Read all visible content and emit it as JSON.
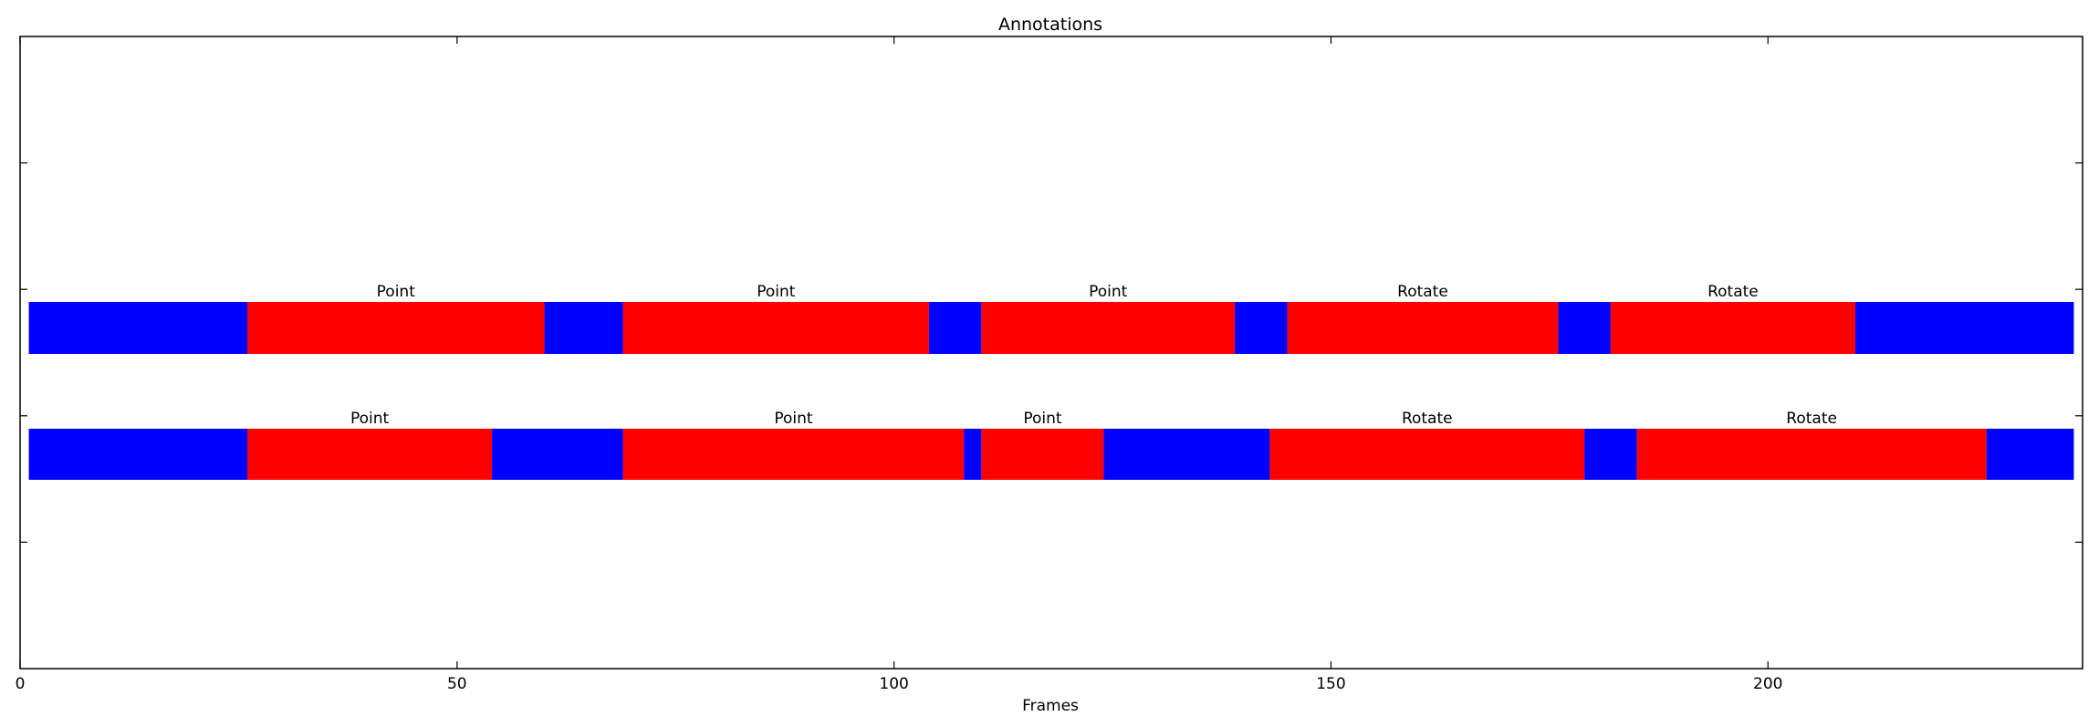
{
  "chart_data": {
    "type": "timeline",
    "title": "Annotations",
    "xlabel": "Frames",
    "ylabel": "",
    "xlim": [
      0,
      236
    ],
    "x_ticks": [
      0,
      50,
      100,
      150,
      200
    ],
    "y_tick_count": 5,
    "grid": false,
    "colors": {
      "background": "#0000ff",
      "labeled": "#ff0000",
      "axes": "#000000"
    },
    "rows": [
      {
        "segments": [
          {
            "start": 1,
            "end": 26,
            "label": "",
            "color": "#0000ff"
          },
          {
            "start": 26,
            "end": 60,
            "label": "Point",
            "color": "#ff0000"
          },
          {
            "start": 60,
            "end": 69,
            "label": "",
            "color": "#0000ff"
          },
          {
            "start": 69,
            "end": 104,
            "label": "Point",
            "color": "#ff0000"
          },
          {
            "start": 104,
            "end": 110,
            "label": "",
            "color": "#0000ff"
          },
          {
            "start": 110,
            "end": 139,
            "label": "Point",
            "color": "#ff0000"
          },
          {
            "start": 139,
            "end": 145,
            "label": "",
            "color": "#0000ff"
          },
          {
            "start": 145,
            "end": 176,
            "label": "Rotate",
            "color": "#ff0000"
          },
          {
            "start": 176,
            "end": 182,
            "label": "",
            "color": "#0000ff"
          },
          {
            "start": 182,
            "end": 210,
            "label": "Rotate",
            "color": "#ff0000"
          },
          {
            "start": 210,
            "end": 235,
            "label": "",
            "color": "#0000ff"
          }
        ]
      },
      {
        "segments": [
          {
            "start": 1,
            "end": 26,
            "label": "",
            "color": "#0000ff"
          },
          {
            "start": 26,
            "end": 54,
            "label": "Point",
            "color": "#ff0000"
          },
          {
            "start": 54,
            "end": 69,
            "label": "",
            "color": "#0000ff"
          },
          {
            "start": 69,
            "end": 108,
            "label": "Point",
            "color": "#ff0000"
          },
          {
            "start": 108,
            "end": 110,
            "label": "",
            "color": "#0000ff"
          },
          {
            "start": 110,
            "end": 124,
            "label": "Point",
            "color": "#ff0000"
          },
          {
            "start": 124,
            "end": 143,
            "label": "",
            "color": "#0000ff"
          },
          {
            "start": 143,
            "end": 179,
            "label": "Rotate",
            "color": "#ff0000"
          },
          {
            "start": 179,
            "end": 185,
            "label": "",
            "color": "#0000ff"
          },
          {
            "start": 185,
            "end": 225,
            "label": "Rotate",
            "color": "#ff0000"
          },
          {
            "start": 225,
            "end": 235,
            "label": "",
            "color": "#0000ff"
          }
        ]
      }
    ]
  }
}
